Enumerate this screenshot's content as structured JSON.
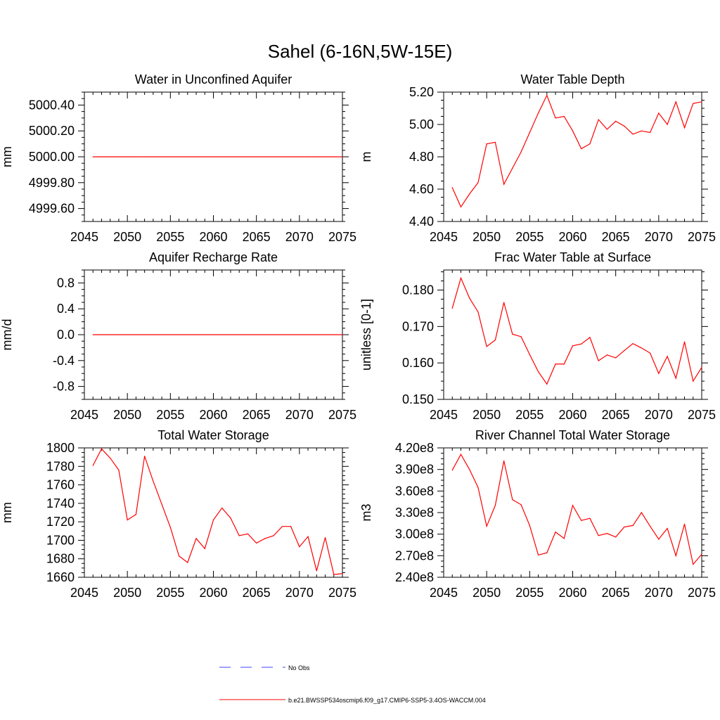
{
  "figure": {
    "title": "Sahel (6-16N,5W-15E)"
  },
  "legend": {
    "position": "bottom-center",
    "entries": [
      {
        "label": "No Obs",
        "color": "#4040ff",
        "style": "dashed"
      },
      {
        "label": "b.e21.BWSSP534oscmip6.f09_g17.CMIP6-SSP5-3.4OS-WACCM.004",
        "color": "#ff0000",
        "style": "solid"
      }
    ]
  },
  "colors": {
    "series": "#ff0000",
    "obs": "#4040ff",
    "axis": "#000000"
  },
  "chart_data": [
    {
      "type": "line",
      "title": "Water in Unconfined Aquifer",
      "ylabel": "mm",
      "xlim": [
        2045,
        2075
      ],
      "ylim": [
        4999.5,
        5000.5
      ],
      "xticks": [
        2045,
        2050,
        2055,
        2060,
        2065,
        2070,
        2075
      ],
      "yticks": [
        4999.6,
        4999.8,
        5000.0,
        5000.2,
        5000.4
      ],
      "ytick_labels": [
        "4999.60",
        "4999.80",
        "5000.00",
        "5000.20",
        "5000.40"
      ],
      "grid": false,
      "series": [
        {
          "x": [
            2046,
            2047,
            2048,
            2049,
            2050,
            2051,
            2052,
            2053,
            2054,
            2055,
            2056,
            2057,
            2058,
            2059,
            2060,
            2061,
            2062,
            2063,
            2064,
            2065,
            2066,
            2067,
            2068,
            2069,
            2070,
            2071,
            2072,
            2073,
            2074,
            2075
          ],
          "values": [
            5000,
            5000,
            5000,
            5000,
            5000,
            5000,
            5000,
            5000,
            5000,
            5000,
            5000,
            5000,
            5000,
            5000,
            5000,
            5000,
            5000,
            5000,
            5000,
            5000,
            5000,
            5000,
            5000,
            5000,
            5000,
            5000,
            5000,
            5000,
            5000,
            5000
          ]
        }
      ]
    },
    {
      "type": "line",
      "title": "Water Table Depth",
      "ylabel": "m",
      "xlim": [
        2045,
        2075
      ],
      "ylim": [
        4.4,
        5.2
      ],
      "xticks": [
        2045,
        2050,
        2055,
        2060,
        2065,
        2070,
        2075
      ],
      "yticks": [
        4.4,
        4.6,
        4.8,
        5.0,
        5.2
      ],
      "ytick_labels": [
        "4.40",
        "4.60",
        "4.80",
        "5.00",
        "5.20"
      ],
      "grid": false,
      "series": [
        {
          "x": [
            2046,
            2047,
            2048,
            2049,
            2050,
            2051,
            2052,
            2053,
            2054,
            2055,
            2056,
            2057,
            2058,
            2059,
            2060,
            2061,
            2062,
            2063,
            2064,
            2065,
            2066,
            2067,
            2068,
            2069,
            2070,
            2071,
            2072,
            2073,
            2074,
            2075
          ],
          "values": [
            4.61,
            4.49,
            4.57,
            4.64,
            4.88,
            4.89,
            4.63,
            4.73,
            4.83,
            4.95,
            5.07,
            5.18,
            5.04,
            5.05,
            4.96,
            4.85,
            4.88,
            5.03,
            4.97,
            5.02,
            4.99,
            4.94,
            4.96,
            4.95,
            5.07,
            5.0,
            5.14,
            4.98,
            5.13,
            5.14
          ]
        }
      ]
    },
    {
      "type": "line",
      "title": "Aquifer Recharge Rate",
      "ylabel": "mm/d",
      "xlim": [
        2045,
        2075
      ],
      "ylim": [
        -1.0,
        1.0
      ],
      "xticks": [
        2045,
        2050,
        2055,
        2060,
        2065,
        2070,
        2075
      ],
      "yticks": [
        -0.8,
        -0.4,
        0.0,
        0.4,
        0.8
      ],
      "ytick_labels": [
        "-0.8",
        "-0.4",
        "0.0",
        "0.4",
        "0.8"
      ],
      "grid": false,
      "series": [
        {
          "x": [
            2046,
            2047,
            2048,
            2049,
            2050,
            2051,
            2052,
            2053,
            2054,
            2055,
            2056,
            2057,
            2058,
            2059,
            2060,
            2061,
            2062,
            2063,
            2064,
            2065,
            2066,
            2067,
            2068,
            2069,
            2070,
            2071,
            2072,
            2073,
            2074,
            2075
          ],
          "values": [
            0,
            0,
            0,
            0,
            0,
            0,
            0,
            0,
            0,
            0,
            0,
            0,
            0,
            0,
            0,
            0,
            0,
            0,
            0,
            0,
            0,
            0,
            0,
            0,
            0,
            0,
            0,
            0,
            0,
            0
          ]
        }
      ]
    },
    {
      "type": "line",
      "title": "Frac Water Table at Surface",
      "ylabel": "unitless [0-1]",
      "xlim": [
        2045,
        2075
      ],
      "ylim": [
        0.15,
        0.1855
      ],
      "xticks": [
        2045,
        2050,
        2055,
        2060,
        2065,
        2070,
        2075
      ],
      "yticks": [
        0.15,
        0.16,
        0.17,
        0.18
      ],
      "ytick_labels": [
        "0.150",
        "0.160",
        "0.170",
        "0.180"
      ],
      "grid": false,
      "series": [
        {
          "x": [
            2046,
            2047,
            2048,
            2049,
            2050,
            2051,
            2052,
            2053,
            2054,
            2055,
            2056,
            2057,
            2058,
            2059,
            2060,
            2061,
            2062,
            2063,
            2064,
            2065,
            2066,
            2067,
            2068,
            2069,
            2070,
            2071,
            2072,
            2073,
            2074,
            2075
          ],
          "values": [
            0.175,
            0.1833,
            0.1778,
            0.174,
            0.1645,
            0.1663,
            0.1766,
            0.1679,
            0.1672,
            0.1623,
            0.1576,
            0.1542,
            0.1597,
            0.1597,
            0.1647,
            0.1652,
            0.167,
            0.1606,
            0.1622,
            0.1614,
            0.1634,
            0.1653,
            0.1641,
            0.1627,
            0.1571,
            0.1618,
            0.1558,
            0.1658,
            0.155,
            0.1588
          ]
        }
      ]
    },
    {
      "type": "line",
      "title": "Total Water Storage",
      "ylabel": "mm",
      "xlim": [
        2045,
        2075
      ],
      "ylim": [
        1660,
        1800
      ],
      "xticks": [
        2045,
        2050,
        2055,
        2060,
        2065,
        2070,
        2075
      ],
      "yticks": [
        1660,
        1680,
        1700,
        1720,
        1740,
        1760,
        1780,
        1800
      ],
      "ytick_labels": [
        "1660",
        "1680",
        "1700",
        "1720",
        "1740",
        "1760",
        "1780",
        "1800"
      ],
      "grid": false,
      "series": [
        {
          "x": [
            2046,
            2047,
            2048,
            2049,
            2050,
            2051,
            2052,
            2053,
            2054,
            2055,
            2056,
            2057,
            2058,
            2059,
            2060,
            2061,
            2062,
            2063,
            2064,
            2065,
            2066,
            2067,
            2068,
            2069,
            2070,
            2071,
            2072,
            2073,
            2074,
            2075
          ],
          "values": [
            1781,
            1799,
            1789,
            1776,
            1722,
            1728,
            1791,
            1764,
            1739,
            1714,
            1683,
            1676,
            1702,
            1691,
            1722,
            1735,
            1724,
            1705,
            1707,
            1697,
            1702,
            1705,
            1715,
            1715,
            1693,
            1704,
            1667,
            1703,
            1663,
            1664
          ]
        }
      ]
    },
    {
      "type": "line",
      "title": "River Channel Total Water Storage",
      "ylabel": "m3",
      "xlim": [
        2045,
        2075
      ],
      "ylim": [
        240000000,
        420000000
      ],
      "xticks": [
        2045,
        2050,
        2055,
        2060,
        2065,
        2070,
        2075
      ],
      "yticks": [
        240000000,
        270000000,
        300000000,
        330000000,
        360000000,
        390000000,
        420000000
      ],
      "ytick_labels": [
        "2.40e8",
        "2.70e8",
        "3.00e8",
        "3.30e8",
        "3.60e8",
        "3.90e8",
        "4.20e8"
      ],
      "grid": false,
      "series": [
        {
          "x": [
            2046,
            2047,
            2048,
            2049,
            2050,
            2051,
            2052,
            2053,
            2054,
            2055,
            2056,
            2057,
            2058,
            2059,
            2060,
            2061,
            2062,
            2063,
            2064,
            2065,
            2066,
            2067,
            2068,
            2069,
            2070,
            2071,
            2072,
            2073,
            2074,
            2075
          ],
          "values": [
            389000000,
            411000000,
            390000000,
            365000000,
            311000000,
            340000000,
            402000000,
            348000000,
            341000000,
            312000000,
            271000000,
            274000000,
            303000000,
            294000000,
            340000000,
            319000000,
            322000000,
            298000000,
            301000000,
            296000000,
            310000000,
            312000000,
            330000000,
            311000000,
            293000000,
            308000000,
            270000000,
            314000000,
            258000000,
            272000000
          ]
        }
      ]
    }
  ]
}
